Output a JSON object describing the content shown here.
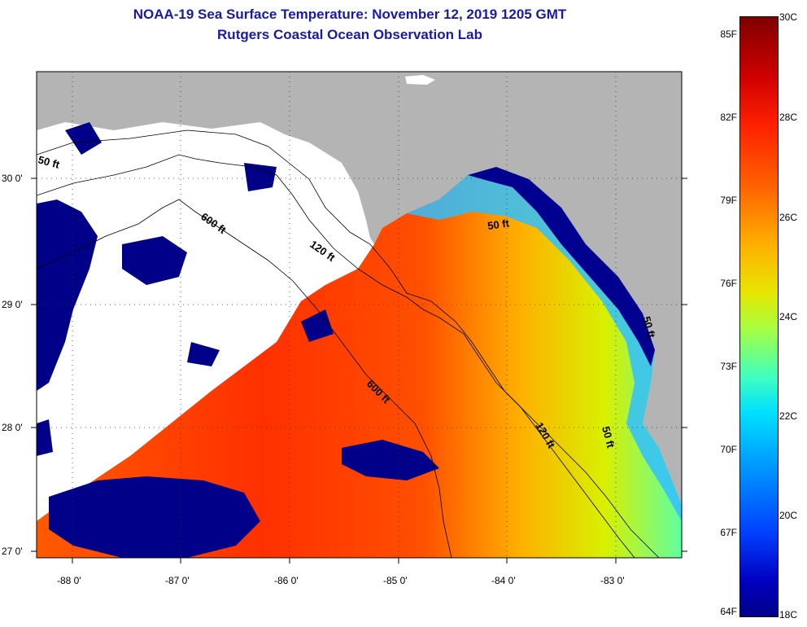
{
  "header": {
    "title": "NOAA-19 Sea Surface Temperature:  November 12, 2019 1205 GMT",
    "subtitle": "Rutgers Coastal Ocean Observation Lab"
  },
  "map": {
    "lat_ticks": [
      "30 0'",
      "29 0'",
      "28 0'",
      "27 0'"
    ],
    "lon_ticks": [
      "-88 0'",
      "-87 0'",
      "-86 0'",
      "-85 0'",
      "-84 0'",
      "-83 0'"
    ],
    "contour_labels": [
      "50 ft",
      "600 ft",
      "120 ft",
      "50 ft",
      "600 ft",
      "120 ft",
      "50 ft",
      "50 ft"
    ],
    "colors": {
      "land": "#b4b4b4",
      "cloud": "#ffffff",
      "cold": "#000080"
    }
  },
  "colorbar": {
    "fahrenheit": [
      "85F",
      "82F",
      "79F",
      "76F",
      "73F",
      "70F",
      "67F",
      "64F"
    ],
    "celsius": [
      "30C",
      "28C",
      "26C",
      "24C",
      "22C",
      "20C",
      "18C"
    ],
    "range_c": [
      18,
      30
    ],
    "range_f": [
      64,
      86
    ]
  }
}
